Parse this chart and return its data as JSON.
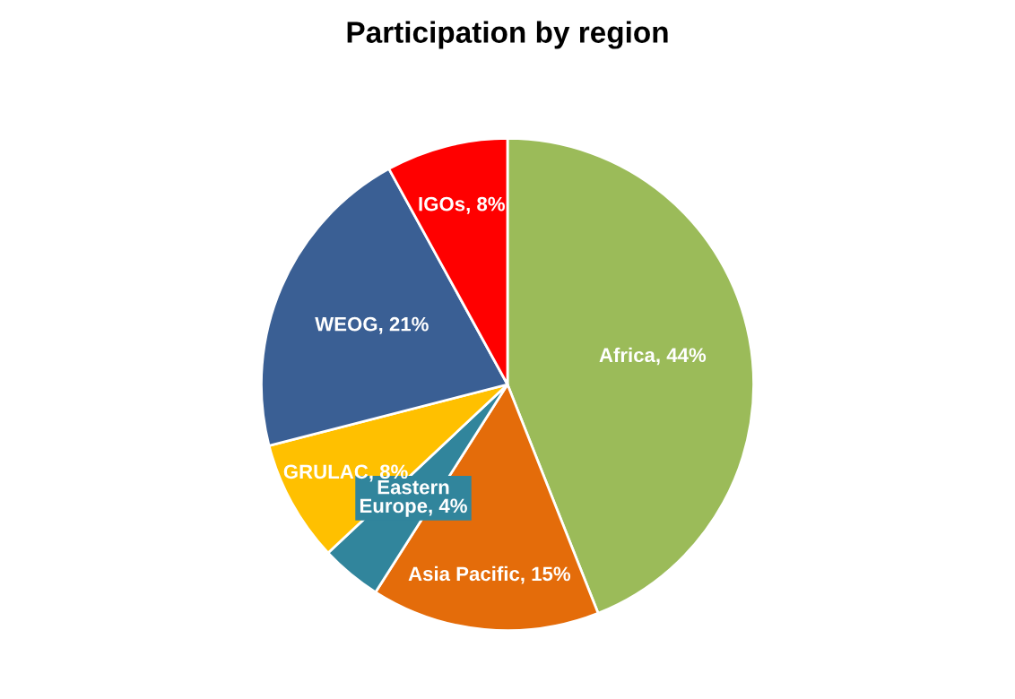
{
  "chart_data": {
    "type": "pie",
    "title": "Participation by region",
    "categories": [
      "Africa",
      "Asia Pacific",
      "Eastern Europe",
      "GRULAC",
      "WEOG",
      "IGOs"
    ],
    "values": [
      44,
      15,
      4,
      8,
      21,
      8
    ],
    "value_labels": [
      "44%",
      "15%",
      "4%",
      "8%",
      "21%",
      "8%"
    ],
    "colors": [
      "#9bbb59",
      "#e46c0a",
      "#31859c",
      "#ffc000",
      "#3a5f94",
      "#ff0000"
    ],
    "legend": false
  }
}
